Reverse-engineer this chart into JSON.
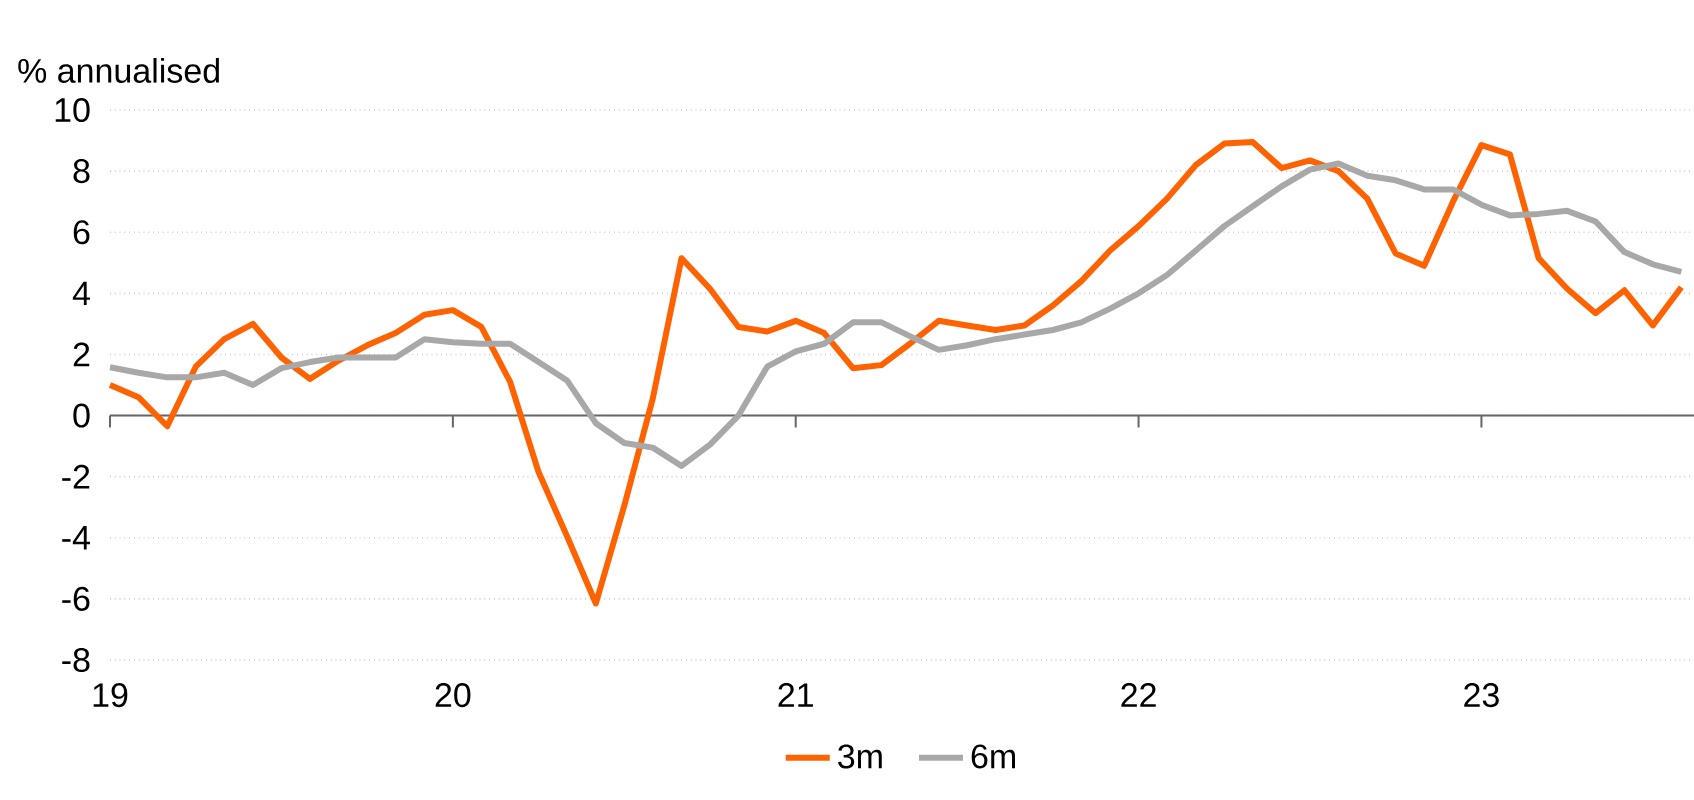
{
  "chart_data": {
    "type": "line",
    "ylabel": "% annualised",
    "x": [
      2019.0,
      2019.083,
      2019.167,
      2019.25,
      2019.333,
      2019.417,
      2019.5,
      2019.583,
      2019.667,
      2019.75,
      2019.833,
      2019.917,
      2020.0,
      2020.083,
      2020.167,
      2020.25,
      2020.333,
      2020.417,
      2020.5,
      2020.583,
      2020.667,
      2020.75,
      2020.833,
      2020.917,
      2021.0,
      2021.083,
      2021.167,
      2021.25,
      2021.333,
      2021.417,
      2021.5,
      2021.583,
      2021.667,
      2021.75,
      2021.833,
      2021.917,
      2022.0,
      2022.083,
      2022.167,
      2022.25,
      2022.333,
      2022.417,
      2022.5,
      2022.583,
      2022.667,
      2022.75,
      2022.833,
      2022.917,
      2023.0,
      2023.083,
      2023.167,
      2023.25,
      2023.333,
      2023.417,
      2023.5,
      2023.583
    ],
    "series": [
      {
        "name": "3m",
        "color": "#ff6200",
        "values": [
          1.0,
          0.6,
          -0.35,
          1.6,
          2.5,
          3.0,
          1.9,
          1.2,
          1.8,
          2.3,
          2.7,
          3.3,
          3.45,
          2.9,
          1.1,
          -1.85,
          -3.95,
          -6.15,
          -2.95,
          0.55,
          5.15,
          4.15,
          2.9,
          2.75,
          3.1,
          2.7,
          1.55,
          1.65,
          2.35,
          3.1,
          2.95,
          2.8,
          2.95,
          3.6,
          4.4,
          5.4,
          6.2,
          7.1,
          8.2,
          8.9,
          8.95,
          8.1,
          8.35,
          8.0,
          7.1,
          5.3,
          4.9,
          7.0,
          8.85,
          8.55,
          5.15,
          4.15,
          3.35,
          4.1,
          2.95,
          4.2
        ]
      },
      {
        "name": "6m",
        "color": "#a8a8a8",
        "values": [
          1.58,
          1.4,
          1.25,
          1.25,
          1.4,
          1.0,
          1.55,
          1.75,
          1.9,
          1.9,
          1.9,
          2.5,
          2.4,
          2.35,
          2.35,
          1.75,
          1.15,
          -0.25,
          -0.9,
          -1.05,
          -1.65,
          -0.95,
          0.0,
          1.6,
          2.1,
          2.35,
          3.05,
          3.05,
          2.6,
          2.15,
          2.3,
          2.5,
          2.65,
          2.8,
          3.05,
          3.5,
          4.0,
          4.6,
          5.4,
          6.2,
          6.85,
          7.5,
          8.05,
          8.25,
          7.85,
          7.7,
          7.4,
          7.4,
          6.9,
          6.55,
          6.6,
          6.7,
          6.35,
          5.35,
          4.95,
          4.7
        ]
      }
    ],
    "xlim": [
      2019,
      2023.62
    ],
    "xticks": [
      {
        "value": 2019,
        "label": "19"
      },
      {
        "value": 2020,
        "label": "20"
      },
      {
        "value": 2021,
        "label": "21"
      },
      {
        "value": 2022,
        "label": "22"
      },
      {
        "value": 2023,
        "label": "23"
      }
    ],
    "ylim": [
      -8,
      10
    ],
    "yticks": [
      -8,
      -6,
      -4,
      -2,
      0,
      2,
      4,
      6,
      8,
      10
    ],
    "grid": "y",
    "legend": "bottom",
    "marker": "none",
    "line_style": "solid"
  }
}
